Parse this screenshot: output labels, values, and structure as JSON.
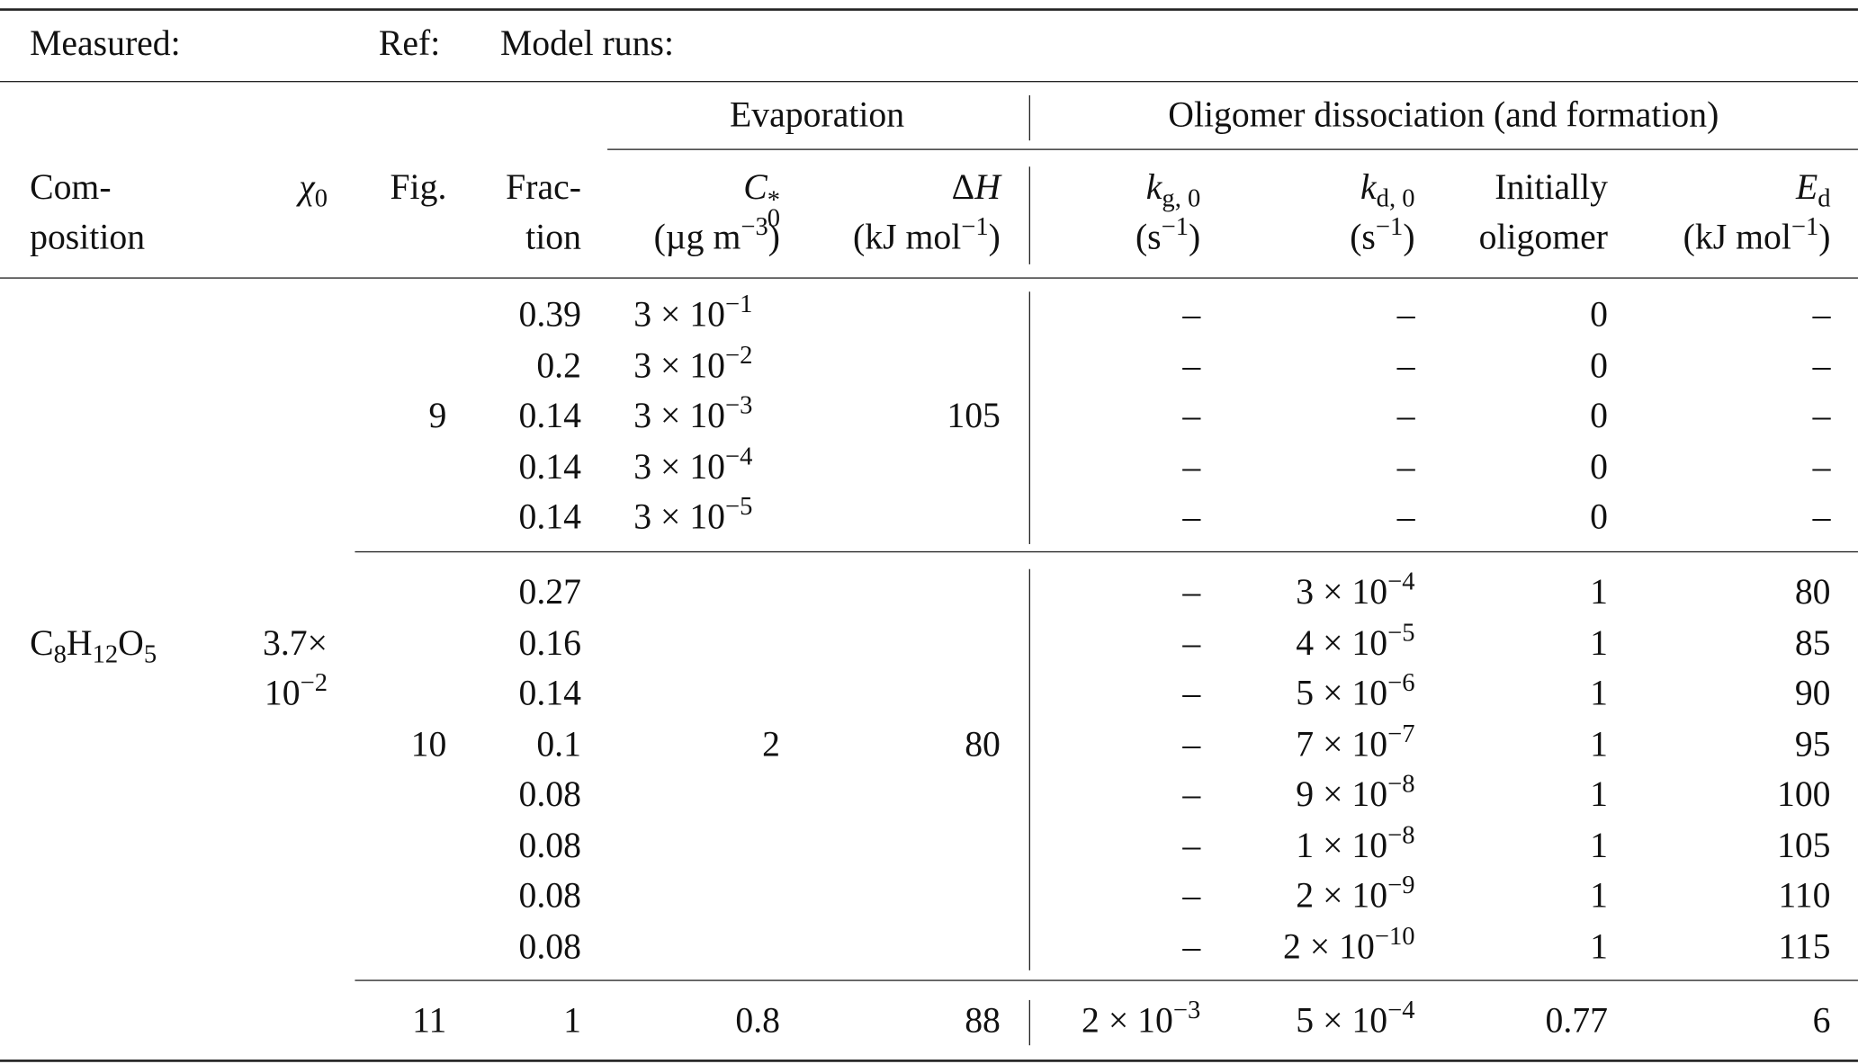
{
  "header": {
    "measured": "Measured:",
    "ref": "Ref:",
    "model_runs": "Model runs:"
  },
  "groups": {
    "evaporation": "Evaporation",
    "oligomer": "Oligomer dissociation (and formation)"
  },
  "columns": {
    "composition": [
      [
        "Com-"
      ],
      [
        "position"
      ]
    ],
    "chi0": [
      [
        {
          "i": "χ"
        },
        {
          "sub": "0"
        }
      ]
    ],
    "fig": [
      [
        "Fig."
      ]
    ],
    "fraction": [
      [
        "Frac-"
      ],
      [
        "tion"
      ]
    ],
    "c0": [
      [
        {
          "i": "C"
        },
        {
          "sup": "*",
          "sub": "0"
        }
      ],
      [
        "(µg m",
        {
          "sup": "−3"
        },
        ")"
      ]
    ],
    "dh": [
      [
        "Δ",
        {
          "i": "H"
        }
      ],
      [
        "(kJ mol",
        {
          "sup": "−1"
        },
        ")"
      ]
    ],
    "kg": [
      [
        {
          "i": "k"
        },
        {
          "sub": "g, 0"
        }
      ],
      [
        "(s",
        {
          "sup": "−1"
        },
        ")"
      ]
    ],
    "kd": [
      [
        {
          "i": "k"
        },
        {
          "sub": "d, 0"
        }
      ],
      [
        "(s",
        {
          "sup": "−1"
        },
        ")"
      ]
    ],
    "initially": [
      [
        "Initially"
      ],
      [
        "oligomer"
      ]
    ],
    "ed": [
      [
        {
          "i": "E"
        },
        {
          "sub": "d"
        }
      ],
      [
        "(kJ mol",
        {
          "sup": "−1"
        },
        ")"
      ]
    ]
  },
  "composition": [
    "C",
    {
      "sub": "8"
    },
    "H",
    {
      "sub": "12"
    },
    "O",
    {
      "sub": "5"
    }
  ],
  "chi0": [
    [
      "3.7×"
    ],
    [
      "10",
      {
        "sup": "−2"
      }
    ]
  ],
  "row_groups": [
    {
      "fig": "9",
      "dh": "105",
      "rows": [
        {
          "fraction": "0.39",
          "c0": [
            "3 × 10",
            {
              "sup": "−1"
            }
          ],
          "kg": "–",
          "kd": "–",
          "initially": "0",
          "ed": "–"
        },
        {
          "fraction": "0.2",
          "c0": [
            "3 × 10",
            {
              "sup": "−2"
            }
          ],
          "kg": "–",
          "kd": "–",
          "initially": "0",
          "ed": "–"
        },
        {
          "fraction": "0.14",
          "c0": [
            "3 × 10",
            {
              "sup": "−3"
            }
          ],
          "kg": "–",
          "kd": "–",
          "initially": "0",
          "ed": "–"
        },
        {
          "fraction": "0.14",
          "c0": [
            "3 × 10",
            {
              "sup": "−4"
            }
          ],
          "kg": "–",
          "kd": "–",
          "initially": "0",
          "ed": "–"
        },
        {
          "fraction": "0.14",
          "c0": [
            "3 × 10",
            {
              "sup": "−5"
            }
          ],
          "kg": "–",
          "kd": "–",
          "initially": "0",
          "ed": "–"
        }
      ]
    },
    {
      "fig": "10",
      "c0": "2",
      "dh": "80",
      "rows": [
        {
          "fraction": "0.27",
          "kg": "–",
          "kd": [
            "3 × 10",
            {
              "sup": "−4"
            }
          ],
          "initially": "1",
          "ed": "80"
        },
        {
          "fraction": "0.16",
          "kg": "–",
          "kd": [
            "4 × 10",
            {
              "sup": "−5"
            }
          ],
          "initially": "1",
          "ed": "85"
        },
        {
          "fraction": "0.14",
          "kg": "–",
          "kd": [
            "5 × 10",
            {
              "sup": "−6"
            }
          ],
          "initially": "1",
          "ed": "90"
        },
        {
          "fraction": "0.1",
          "kg": "–",
          "kd": [
            "7 × 10",
            {
              "sup": "−7"
            }
          ],
          "initially": "1",
          "ed": "95"
        },
        {
          "fraction": "0.08",
          "kg": "–",
          "kd": [
            "9 × 10",
            {
              "sup": "−8"
            }
          ],
          "initially": "1",
          "ed": "100"
        },
        {
          "fraction": "0.08",
          "kg": "–",
          "kd": [
            "1 × 10",
            {
              "sup": "−8"
            }
          ],
          "initially": "1",
          "ed": "105"
        },
        {
          "fraction": "0.08",
          "kg": "–",
          "kd": [
            "2 × 10",
            {
              "sup": "−9"
            }
          ],
          "initially": "1",
          "ed": "110"
        },
        {
          "fraction": "0.08",
          "kg": "–",
          "kd": [
            "2 × 10",
            {
              "sup": "−10"
            }
          ],
          "initially": "1",
          "ed": "115"
        }
      ]
    },
    {
      "fig": "11",
      "rows": [
        {
          "fraction": "1",
          "c0": "0.8",
          "dh": "88",
          "kg": [
            "2 × 10",
            {
              "sup": "−3"
            }
          ],
          "kd": [
            "5 × 10",
            {
              "sup": "−4"
            }
          ],
          "initially": "0.77",
          "ed": "6"
        }
      ]
    }
  ]
}
